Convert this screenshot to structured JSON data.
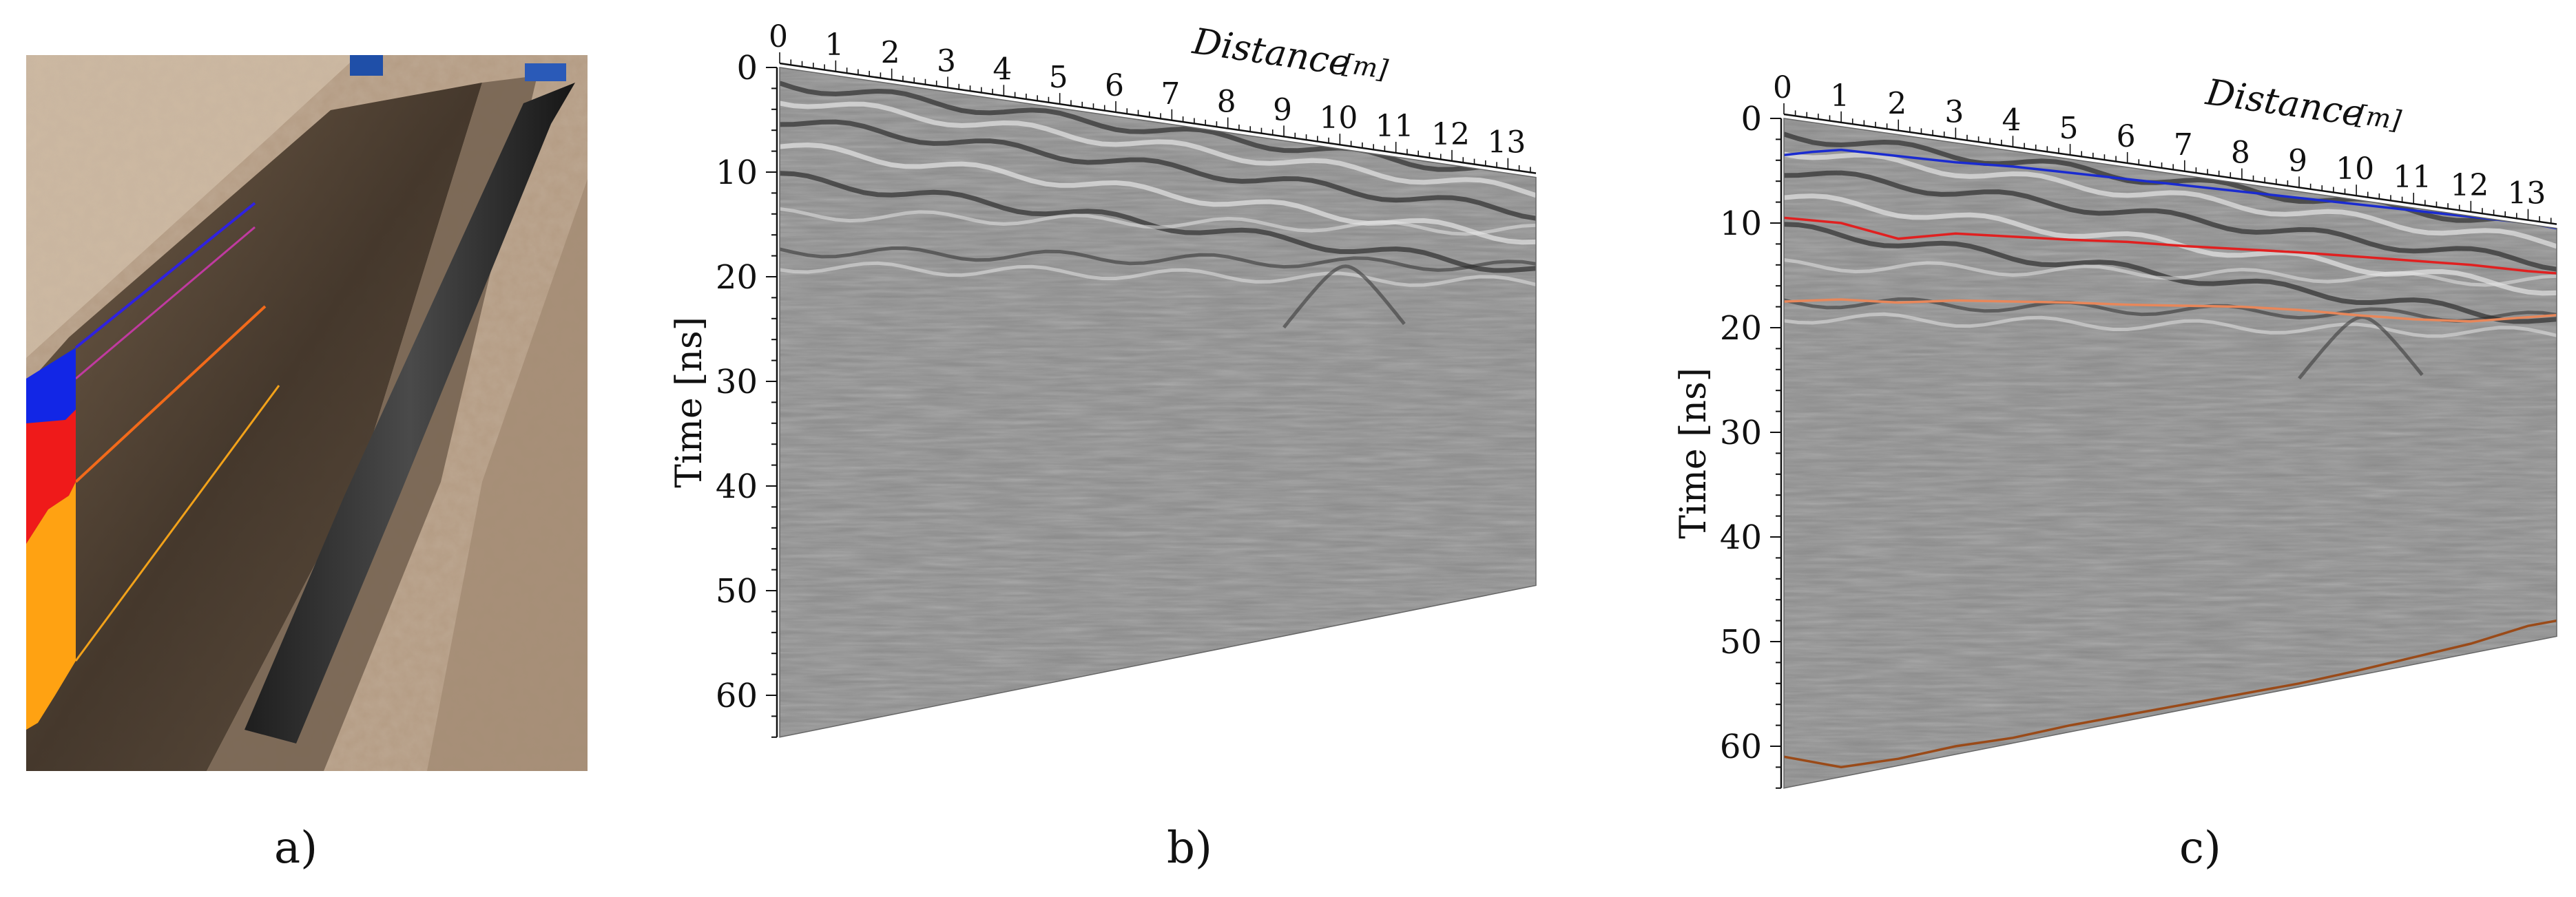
{
  "figure": {
    "panels": [
      {
        "id": "a",
        "label": "a)",
        "content": "trench photo with colored layer annotation"
      },
      {
        "id": "b",
        "label": "b)"
      },
      {
        "id": "c",
        "label": "c)"
      }
    ],
    "photo_layers": [
      {
        "color": "#1226e6"
      },
      {
        "color": "#ef1a1a"
      },
      {
        "color": "#ffa212"
      }
    ]
  },
  "chart_data": [
    {
      "type": "heatmap",
      "title": "",
      "xlabel": "Distance",
      "xunit": "[m]",
      "ylabel": "Time [ns]",
      "xticks": [
        0,
        1,
        2,
        3,
        4,
        5,
        6,
        7,
        8,
        9,
        10,
        11,
        12,
        13
      ],
      "yticks": [
        0,
        10,
        20,
        30,
        40,
        50,
        60
      ],
      "xlim": [
        0,
        13.5
      ],
      "ylim": [
        0,
        64
      ],
      "top_edge_time": [
        [
          0,
          0
        ],
        [
          13.5,
          10.5
        ]
      ],
      "bottom_edge_time": [
        [
          0,
          64
        ],
        [
          13.5,
          49.5
        ]
      ],
      "interpreted_horizons": []
    },
    {
      "type": "heatmap",
      "title": "",
      "xlabel": "Distance",
      "xunit": "[m]",
      "ylabel": "Time [ns]",
      "xticks": [
        0,
        1,
        2,
        3,
        4,
        5,
        6,
        7,
        8,
        9,
        10,
        11,
        12,
        13
      ],
      "yticks": [
        0,
        10,
        20,
        30,
        40,
        50,
        60
      ],
      "xlim": [
        0,
        13.5
      ],
      "ylim": [
        0,
        64
      ],
      "top_edge_time": [
        [
          0,
          0
        ],
        [
          13.5,
          10.5
        ]
      ],
      "bottom_edge_time": [
        [
          0,
          64
        ],
        [
          13.5,
          49.5
        ]
      ],
      "interpreted_horizons": [
        {
          "color": "#1a2bd0",
          "points": [
            [
              0,
              3.5
            ],
            [
              0.5,
              3.2
            ],
            [
              1,
              3.0
            ],
            [
              2,
              3.6
            ],
            [
              3,
              4.2
            ],
            [
              4,
              4.6
            ],
            [
              5,
              5.2
            ],
            [
              6,
              5.8
            ],
            [
              7,
              6.4
            ],
            [
              8,
              7.0
            ],
            [
              9,
              7.6
            ],
            [
              10,
              8.2
            ],
            [
              11,
              8.8
            ],
            [
              12,
              9.4
            ],
            [
              13,
              10.0
            ],
            [
              13.5,
              10.5
            ]
          ]
        },
        {
          "color": "#e02020",
          "points": [
            [
              0,
              9.5
            ],
            [
              1,
              10.0
            ],
            [
              2,
              11.5
            ],
            [
              3,
              11.0
            ],
            [
              4,
              11.3
            ],
            [
              5,
              11.6
            ],
            [
              6,
              11.8
            ],
            [
              7,
              12.2
            ],
            [
              8,
              12.5
            ],
            [
              9,
              12.8
            ],
            [
              10,
              13.2
            ],
            [
              11,
              13.6
            ],
            [
              12,
              14.0
            ],
            [
              13,
              14.6
            ],
            [
              13.5,
              14.8
            ]
          ]
        },
        {
          "color": "#e8875a",
          "points": [
            [
              0,
              17.5
            ],
            [
              1,
              17.3
            ],
            [
              2,
              17.6
            ],
            [
              3,
              17.4
            ],
            [
              4,
              17.5
            ],
            [
              5,
              17.6
            ],
            [
              6,
              17.8
            ],
            [
              7,
              17.9
            ],
            [
              8,
              18.0
            ],
            [
              9,
              18.3
            ],
            [
              10,
              18.8
            ],
            [
              11,
              19.2
            ],
            [
              12,
              19.4
            ],
            [
              13,
              19.0
            ],
            [
              13.5,
              18.8
            ]
          ]
        },
        {
          "color": "#9a4a18",
          "points": [
            [
              0,
              61.0
            ],
            [
              0.5,
              61.5
            ],
            [
              1,
              62.0
            ],
            [
              2,
              61.2
            ],
            [
              3,
              60.0
            ],
            [
              4,
              59.2
            ],
            [
              5,
              58.0
            ],
            [
              6,
              57.0
            ],
            [
              7,
              56.0
            ],
            [
              8,
              55.0
            ],
            [
              9,
              54.0
            ],
            [
              10,
              52.8
            ],
            [
              11,
              51.5
            ],
            [
              12,
              50.2
            ],
            [
              13,
              48.5
            ],
            [
              13.5,
              48.0
            ]
          ]
        }
      ]
    }
  ]
}
